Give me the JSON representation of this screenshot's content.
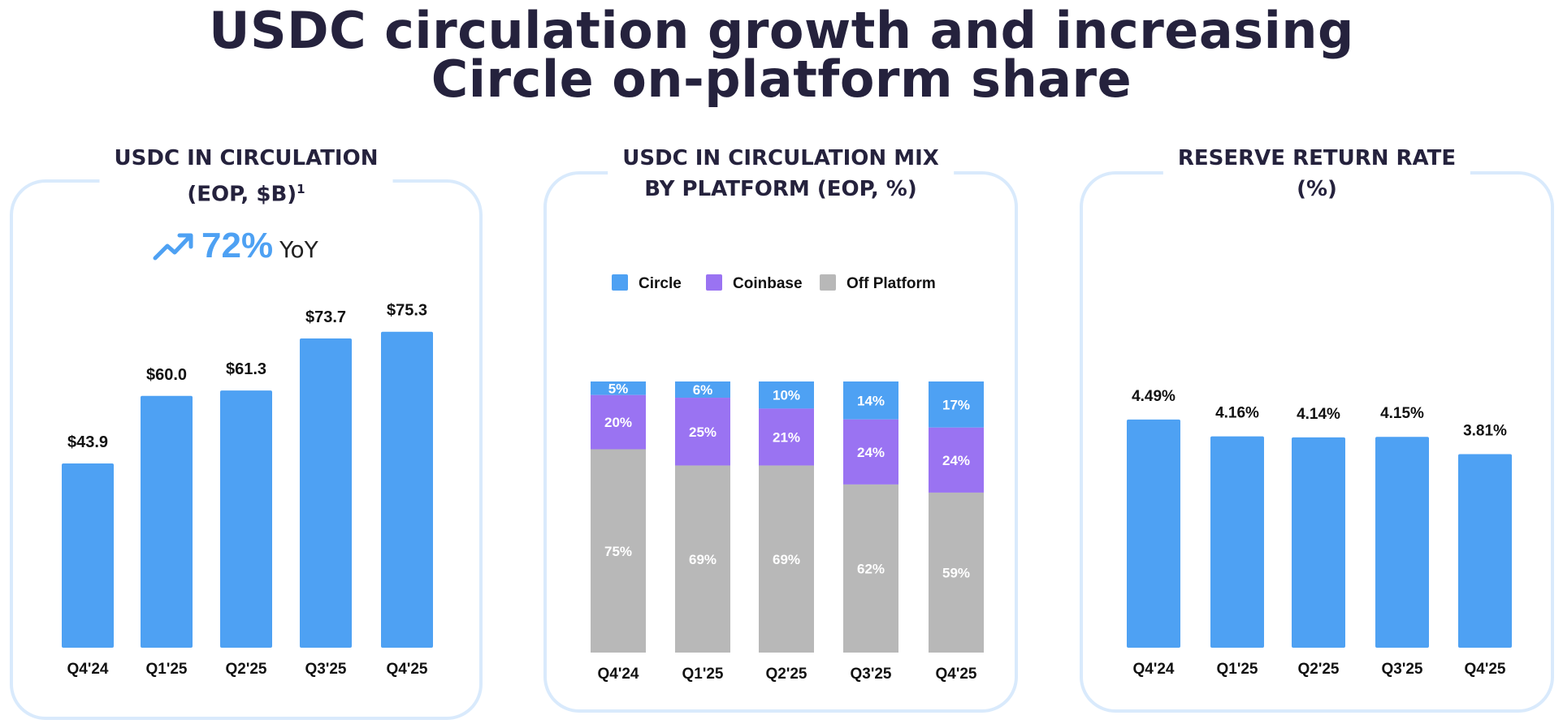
{
  "title": {
    "line1": "USDC circulation growth and increasing",
    "line2": "Circle on-platform share"
  },
  "colors": {
    "circle": "#4ea1f3",
    "coinbase": "#9a73f2",
    "off_platform": "#b8b8b8",
    "bar": "#4ea1f3",
    "card_border": "#d9eafc"
  },
  "yoy": {
    "icon": "trending-up-icon",
    "value": "72%",
    "label": "YoY"
  },
  "chart_data": [
    {
      "type": "bar",
      "title": "USDC IN CIRCULATION",
      "title_line2": "(EOP, $B)",
      "footnote_marker": "1",
      "categories": [
        "Q4'24",
        "Q1'25",
        "Q2'25",
        "Q3'25",
        "Q4'25"
      ],
      "values": [
        43.9,
        60.0,
        61.3,
        73.7,
        75.3
      ],
      "data_labels": [
        "$43.9",
        "$60.0",
        "$61.3",
        "$73.7",
        "$75.3"
      ],
      "ylim": [
        0,
        80
      ],
      "grid": false
    },
    {
      "type": "bar",
      "stacked": true,
      "title": "USDC IN CIRCULATION MIX",
      "title_line2": "BY PLATFORM (EOP, %)",
      "categories": [
        "Q4'24",
        "Q1'25",
        "Q2'25",
        "Q3'25",
        "Q4'25"
      ],
      "legend_position": "top",
      "series": [
        {
          "name": "Circle",
          "values": [
            5,
            6,
            10,
            14,
            17
          ]
        },
        {
          "name": "Coinbase",
          "values": [
            20,
            25,
            21,
            24,
            24
          ]
        },
        {
          "name": "Off Platform",
          "values": [
            75,
            69,
            69,
            62,
            59
          ]
        }
      ],
      "ylim": [
        0,
        100
      ],
      "grid": false
    },
    {
      "type": "bar",
      "title": "RESERVE RETURN RATE",
      "title_line2": "(%)",
      "categories": [
        "Q4'24",
        "Q1'25",
        "Q2'25",
        "Q3'25",
        "Q4'25"
      ],
      "values": [
        4.49,
        4.16,
        4.14,
        4.15,
        3.81
      ],
      "data_labels": [
        "4.49%",
        "4.16%",
        "4.14%",
        "4.15%",
        "3.81%"
      ],
      "ylim": [
        0,
        5
      ],
      "grid": false
    }
  ]
}
